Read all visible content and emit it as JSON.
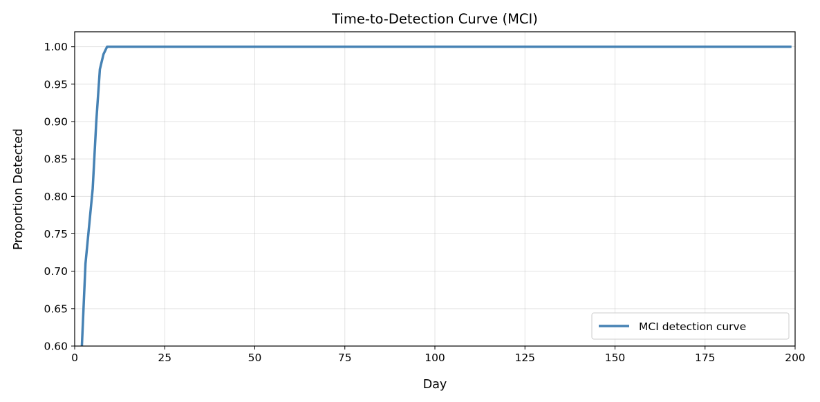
{
  "chart_data": {
    "type": "line",
    "title": "Time-to-Detection Curve (MCI)",
    "xlabel": "Day",
    "ylabel": "Proportion Detected",
    "xlim": [
      0,
      200
    ],
    "ylim": [
      0.6,
      1.02
    ],
    "xticks": [
      0,
      25,
      50,
      75,
      100,
      125,
      150,
      175,
      200
    ],
    "yticks": [
      0.6,
      0.65,
      0.7,
      0.75,
      0.8,
      0.85,
      0.9,
      0.95,
      1.0
    ],
    "xtick_labels": [
      "0",
      "25",
      "50",
      "75",
      "100",
      "125",
      "150",
      "175",
      "200"
    ],
    "ytick_labels": [
      "0.60",
      "0.65",
      "0.70",
      "0.75",
      "0.80",
      "0.85",
      "0.90",
      "0.95",
      "1.00"
    ],
    "grid": true,
    "legend_position": "lower-right",
    "series": [
      {
        "name": "MCI detection curve",
        "color": "#4682b4",
        "x": [
          2,
          3,
          4,
          5,
          6,
          7,
          8,
          9,
          10,
          199
        ],
        "y": [
          0.6,
          0.71,
          0.76,
          0.81,
          0.9,
          0.97,
          0.99,
          1.0,
          1.0,
          1.0
        ]
      }
    ]
  }
}
